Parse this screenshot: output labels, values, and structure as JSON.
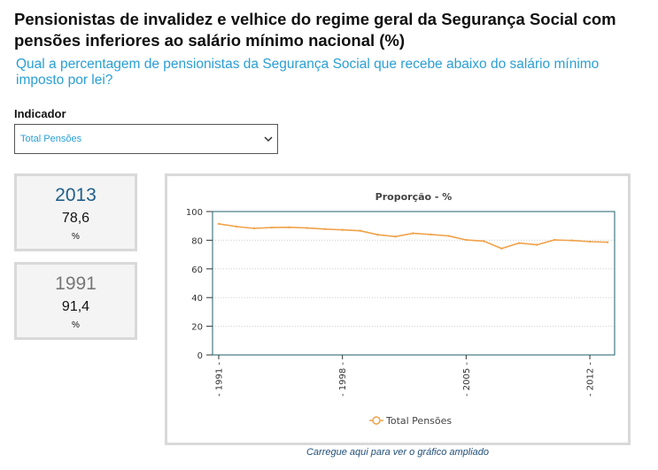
{
  "header": {
    "title": "Pensionistas de invalidez e velhice do regime geral da Segurança Social com pensões inferiores ao salário mínimo nacional (%)",
    "subtitle": "Qual a percentagem de pensionistas da Segurança Social que recebe abaixo do salário mínimo imposto por lei?"
  },
  "indicator": {
    "label": "Indicador",
    "selected": "Total Pensões",
    "icon": "chevron-down-icon"
  },
  "stats": [
    {
      "year": "2013",
      "value": "78,6",
      "unit": "%"
    },
    {
      "year": "1991",
      "value": "91,4",
      "unit": "%"
    }
  ],
  "chart_data": {
    "type": "line",
    "title": "Proporção - %",
    "xlabel": "",
    "ylabel": "",
    "x": [
      1991,
      1992,
      1993,
      1994,
      1995,
      1996,
      1997,
      1998,
      1999,
      2000,
      2001,
      2002,
      2003,
      2004,
      2005,
      2006,
      2007,
      2008,
      2009,
      2010,
      2011,
      2012,
      2013
    ],
    "series": [
      {
        "name": "Total Pensões",
        "values": [
          91.4,
          89.5,
          88.3,
          88.8,
          89.0,
          88.5,
          87.8,
          87.2,
          86.6,
          83.8,
          82.5,
          84.8,
          84.0,
          83.0,
          80.2,
          79.4,
          74.2,
          78.0,
          76.8,
          80.2,
          79.8,
          79.0,
          78.6
        ]
      }
    ],
    "xticks": [
      "1991",
      "1998",
      "2005",
      "2012"
    ],
    "yticks": [
      0,
      20,
      40,
      60,
      80,
      100
    ],
    "ylim": [
      0,
      100
    ],
    "grid": true,
    "legend": "bottom-center",
    "color": "#f0a24a"
  },
  "caption": "Carregue aqui para ver o gráfico ampliado"
}
